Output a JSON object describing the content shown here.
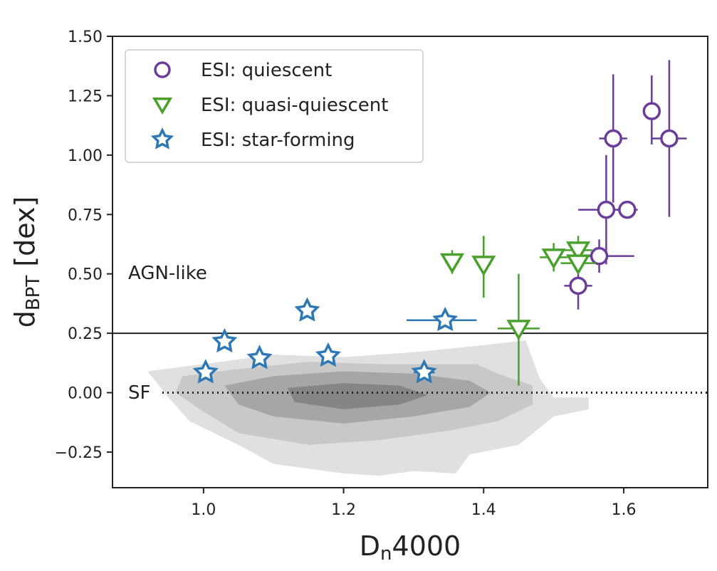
{
  "chart_data": {
    "type": "scatter",
    "xlabel_main": "D",
    "xlabel_sub": "n",
    "xlabel_tail": "4000",
    "ylabel_main": "d",
    "ylabel_sub": "BPT",
    "ylabel_tail": " [dex]",
    "xlim": [
      0.87,
      1.72
    ],
    "ylim": [
      -0.4,
      1.5
    ],
    "xticks": [
      1.0,
      1.2,
      1.4,
      1.6
    ],
    "xtick_labels": [
      "1.0",
      "1.2",
      "1.4",
      "1.6"
    ],
    "yticks": [
      1.5,
      1.25,
      1.0,
      0.75,
      0.5,
      0.25,
      0.0,
      -0.25
    ],
    "ytick_labels": [
      "1.50",
      "1.25",
      "1.00",
      "0.75",
      "0.50",
      "0.25",
      "0.00",
      "−0.25"
    ],
    "annotations": {
      "agn_label": "AGN-like",
      "sf_label": "SF"
    },
    "reference_lines": [
      {
        "y": 0.25,
        "style": "solid"
      },
      {
        "y": 0.0,
        "style": "dotted"
      }
    ],
    "legend_position": "upper left",
    "series": [
      {
        "name": "ESI: quiescent",
        "marker": "circle",
        "color": "#6a3d9a",
        "points": [
          {
            "x": 1.64,
            "y": 1.185,
            "xerr": 0.01,
            "yerr": [
              0.14,
              0.15
            ]
          },
          {
            "x": 1.585,
            "y": 1.07,
            "xerr": 0.02,
            "yerr": [
              0.27,
              0.27
            ]
          },
          {
            "x": 1.665,
            "y": 1.07,
            "xerr": 0.025,
            "yerr": [
              0.33,
              0.33
            ]
          },
          {
            "x": 1.575,
            "y": 0.77,
            "xerr": [
              0.04,
              0.02
            ],
            "yerr": [
              0.23,
              0.23
            ]
          },
          {
            "x": 1.605,
            "y": 0.77,
            "xerr": 0.015,
            "yerr": [
              0.0,
              0.0
            ]
          },
          {
            "x": 1.565,
            "y": 0.575,
            "xerr": [
              0.025,
              0.05
            ],
            "yerr": [
              0.07,
              0.07
            ]
          },
          {
            "x": 1.535,
            "y": 0.45,
            "xerr": 0.02,
            "yerr": [
              0.1,
              0.1
            ]
          }
        ]
      },
      {
        "name": "ESI: quasi-quiescent",
        "marker": "triangle-down",
        "color": "#4aa02c",
        "points": [
          {
            "x": 1.355,
            "y": 0.55,
            "xerr": 0.01,
            "yerr": [
              0.05,
              0.05
            ]
          },
          {
            "x": 1.4,
            "y": 0.54,
            "xerr": 0.01,
            "yerr": [
              0.14,
              0.12
            ]
          },
          {
            "x": 1.45,
            "y": 0.27,
            "xerr": 0.03,
            "yerr": [
              0.24,
              0.23
            ]
          },
          {
            "x": 1.5,
            "y": 0.57,
            "xerr": 0.02,
            "yerr": [
              0.06,
              0.06
            ]
          },
          {
            "x": 1.535,
            "y": 0.6,
            "xerr": 0.02,
            "yerr": [
              0.06,
              0.06
            ]
          },
          {
            "x": 1.535,
            "y": 0.545,
            "xerr": [
              0.025,
              0.025
            ],
            "yerr": [
              0.02,
              0.02
            ]
          }
        ]
      },
      {
        "name": "ESI: star-forming",
        "marker": "star",
        "color": "#2f78b6",
        "points": [
          {
            "x": 1.003,
            "y": 0.085,
            "xerr": 0,
            "yerr": 0
          },
          {
            "x": 1.03,
            "y": 0.215,
            "xerr": 0,
            "yerr": 0
          },
          {
            "x": 1.08,
            "y": 0.145,
            "xerr": 0,
            "yerr": 0
          },
          {
            "x": 1.148,
            "y": 0.345,
            "xerr": 0,
            "yerr": 0
          },
          {
            "x": 1.178,
            "y": 0.155,
            "xerr": 0,
            "yerr": 0
          },
          {
            "x": 1.345,
            "y": 0.305,
            "xerr": [
              0.055,
              0.045
            ],
            "yerr": 0
          },
          {
            "x": 1.315,
            "y": 0.085,
            "xerr": [
              0.015,
              0.015
            ],
            "yerr": 0
          }
        ]
      }
    ],
    "background_density": {
      "description_levels": [
        "#e0e0e0",
        "#c8c8c8",
        "#a6a6a6",
        "#858585"
      ]
    }
  }
}
